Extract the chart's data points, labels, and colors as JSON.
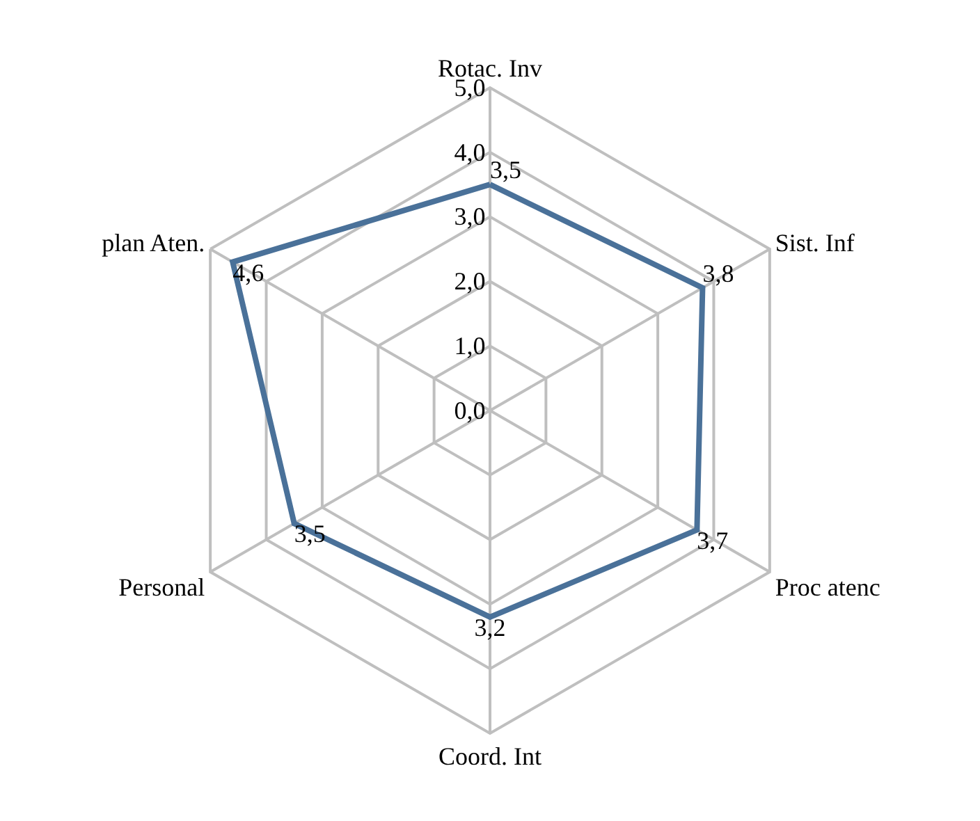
{
  "chart_data": {
    "type": "radar",
    "categories": [
      "Rotac. Inv",
      "Sist. Inf",
      "Proc atenc",
      "Coord. Int",
      "Personal",
      "plan Aten."
    ],
    "series": [
      {
        "color": "#4a7199",
        "values": [
          3.5,
          3.8,
          3.7,
          3.2,
          3.5,
          4.6
        ],
        "value_labels": [
          "3,5",
          "3,8",
          "3,7",
          "3,2",
          "3,5",
          "4,6"
        ]
      }
    ],
    "ylim": [
      0,
      5
    ],
    "yticks": [
      {
        "value": 0,
        "label": "0,0"
      },
      {
        "value": 1,
        "label": "1,0"
      },
      {
        "value": 2,
        "label": "2,0"
      },
      {
        "value": 3,
        "label": "3,0"
      },
      {
        "value": 4,
        "label": "4,0"
      },
      {
        "value": 5,
        "label": "5,0"
      }
    ],
    "grid": true,
    "marker": "none",
    "line_style": "solid"
  }
}
